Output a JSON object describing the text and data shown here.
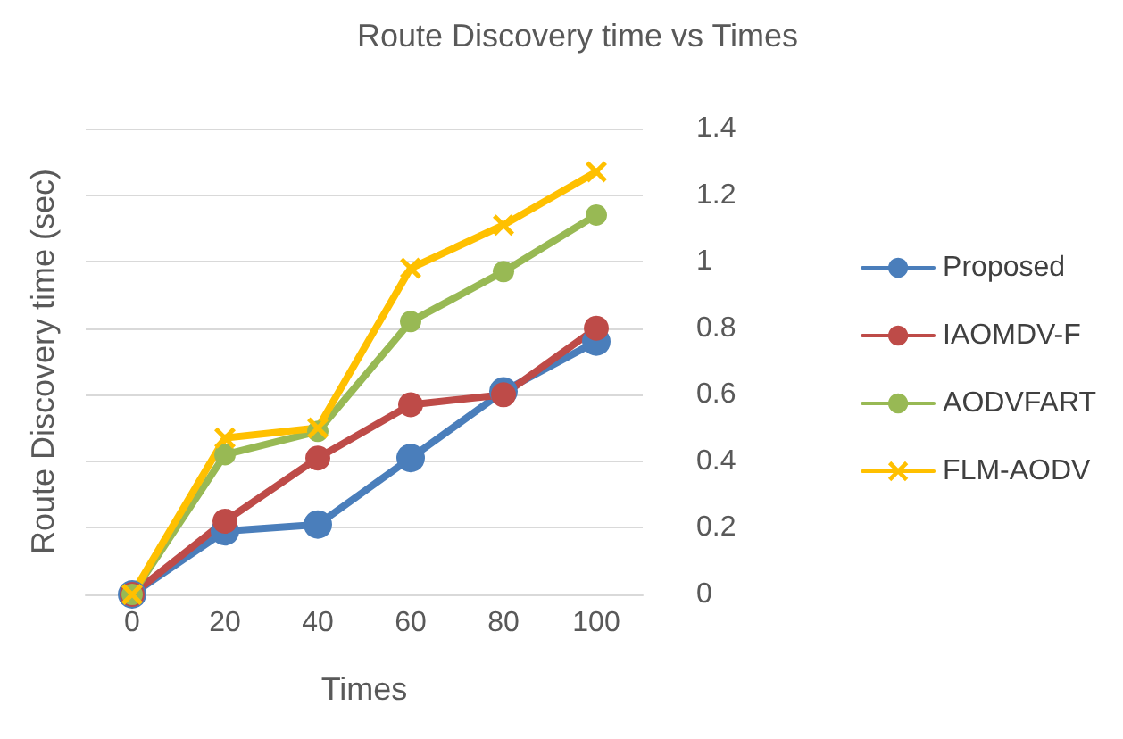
{
  "chart_data": {
    "type": "line",
    "title": "Route Discovery time vs Times",
    "xlabel": "Times",
    "ylabel": "Route Discovery time (sec)",
    "categories": [
      "0",
      "20",
      "40",
      "60",
      "80",
      "100"
    ],
    "series": [
      {
        "name": "Proposed",
        "color": "#4a7ebb",
        "marker": "circle",
        "values": [
          0,
          0.19,
          0.21,
          0.41,
          0.61,
          0.76
        ]
      },
      {
        "name": "IAOMDV-F",
        "color": "#be4b48",
        "marker": "circle",
        "values": [
          0,
          0.22,
          0.41,
          0.57,
          0.6,
          0.8
        ]
      },
      {
        "name": "AODVFART",
        "color": "#98b954",
        "marker": "circle",
        "values": [
          0,
          0.42,
          0.49,
          0.82,
          0.97,
          1.14
        ]
      },
      {
        "name": "FLM-AODV",
        "color": "#ffc000",
        "marker": "cross",
        "values": [
          0,
          0.47,
          0.5,
          0.98,
          1.11,
          1.27
        ]
      }
    ],
    "ylim": [
      0,
      1.4
    ],
    "yticks": [
      0,
      0.2,
      0.4,
      0.6,
      0.8,
      1,
      1.2,
      1.4
    ],
    "grid": "y",
    "legend": "right"
  }
}
